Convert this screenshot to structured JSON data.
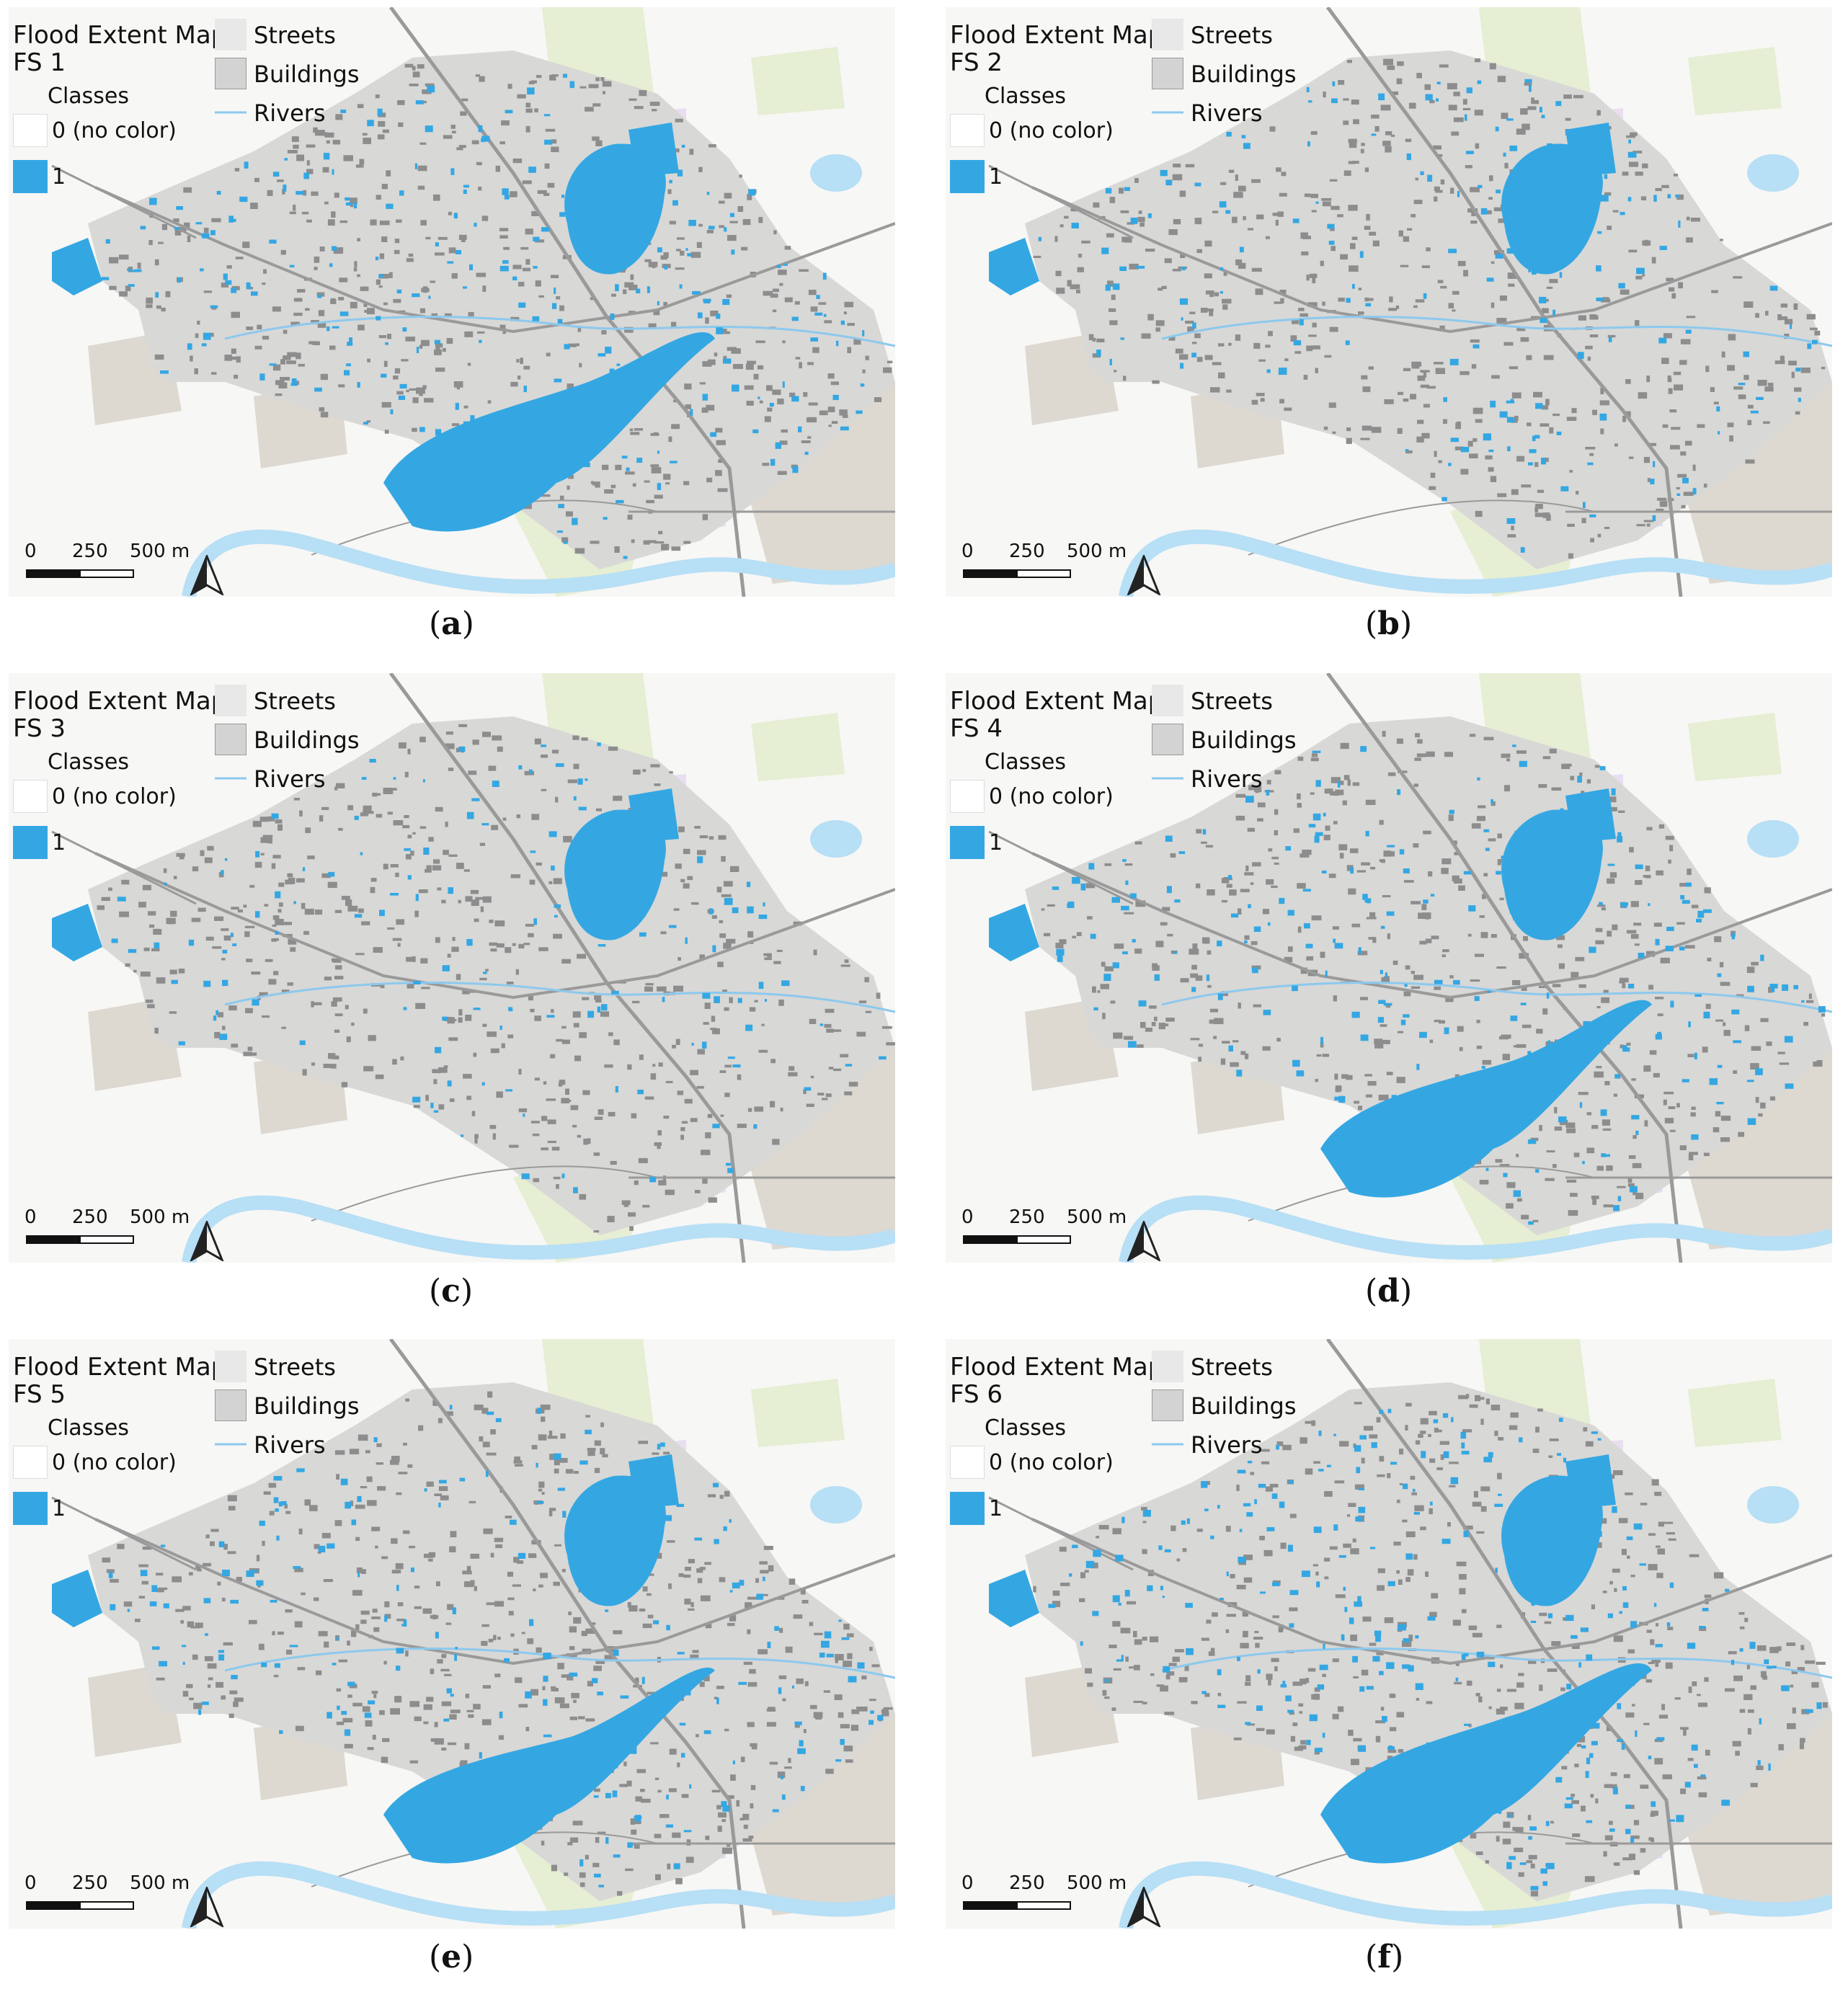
{
  "legend": {
    "streets": "Streets",
    "buildings": "Buildings",
    "rivers": "Rivers",
    "classes": "Classes",
    "class0": "0 (no color)",
    "class1": "1"
  },
  "scale": {
    "t0": "0",
    "t250": "250",
    "t500": "500 m"
  },
  "colors": {
    "flood": "#34a7e3",
    "river": "#b7dff5",
    "building": "#8d8d8d",
    "street": "#c8c8c8",
    "green": "#e6eed3",
    "purple": "#e8def0",
    "beige": "#ddd9d1"
  },
  "panels": [
    {
      "title1": "Flood Extent Map",
      "title2": "FS 1",
      "caption_open": "(",
      "caption_letter": "a",
      "caption_close": ")",
      "flood_level": 0.9
    },
    {
      "title1": "Flood Extent Map",
      "title2": "FS 2",
      "caption_open": "(",
      "caption_letter": "b",
      "caption_close": ")",
      "flood_level": 0.35
    },
    {
      "title1": "Flood Extent Map",
      "title2": "FS 3",
      "caption_open": "(",
      "caption_letter": "c",
      "caption_close": ")",
      "flood_level": 0.25
    },
    {
      "title1": "Flood Extent Map",
      "title2": "FS 4",
      "caption_open": "(",
      "caption_letter": "d",
      "caption_close": ")",
      "flood_level": 0.75
    },
    {
      "title1": "Flood Extent Map",
      "title2": "FS 5",
      "caption_open": "(",
      "caption_letter": "e",
      "caption_close": ")",
      "flood_level": 0.6
    },
    {
      "title1": "Flood Extent Map",
      "title2": "FS 6",
      "caption_open": "(",
      "caption_letter": "f",
      "caption_close": ")",
      "flood_level": 0.95
    }
  ]
}
